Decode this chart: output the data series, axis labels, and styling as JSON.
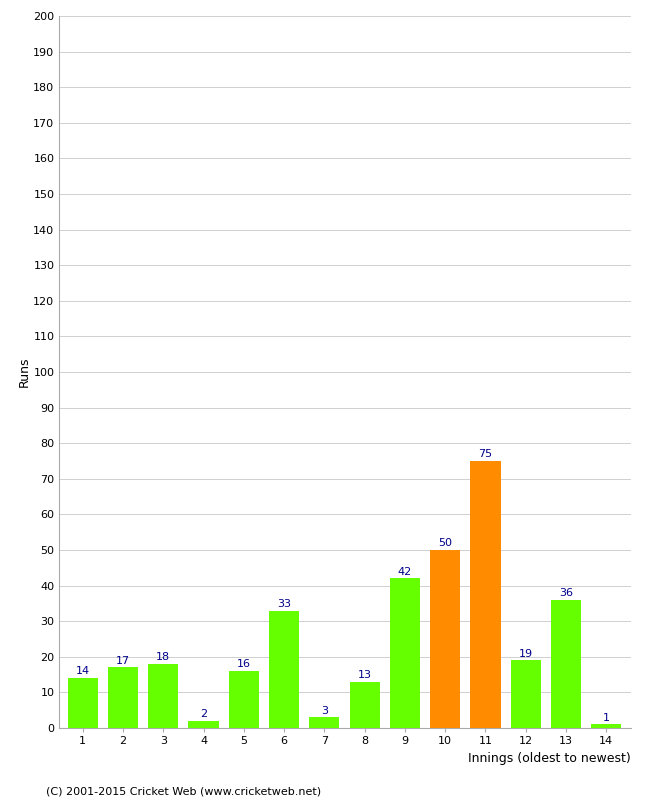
{
  "categories": [
    "1",
    "2",
    "3",
    "4",
    "5",
    "6",
    "7",
    "8",
    "9",
    "10",
    "11",
    "12",
    "13",
    "14"
  ],
  "values": [
    14,
    17,
    18,
    2,
    16,
    33,
    3,
    13,
    42,
    50,
    75,
    19,
    36,
    1
  ],
  "colors": [
    "#66ff00",
    "#66ff00",
    "#66ff00",
    "#66ff00",
    "#66ff00",
    "#66ff00",
    "#66ff00",
    "#66ff00",
    "#66ff00",
    "#ff8c00",
    "#ff8c00",
    "#66ff00",
    "#66ff00",
    "#66ff00"
  ],
  "xlabel": "Innings (oldest to newest)",
  "ylabel": "Runs",
  "ylim": [
    0,
    200
  ],
  "ytick_step": 10,
  "label_color": "#00008b",
  "footer": "(C) 2001-2015 Cricket Web (www.cricketweb.net)",
  "background_color": "#ffffff",
  "grid_color": "#d0d0d0",
  "bar_width": 0.75
}
